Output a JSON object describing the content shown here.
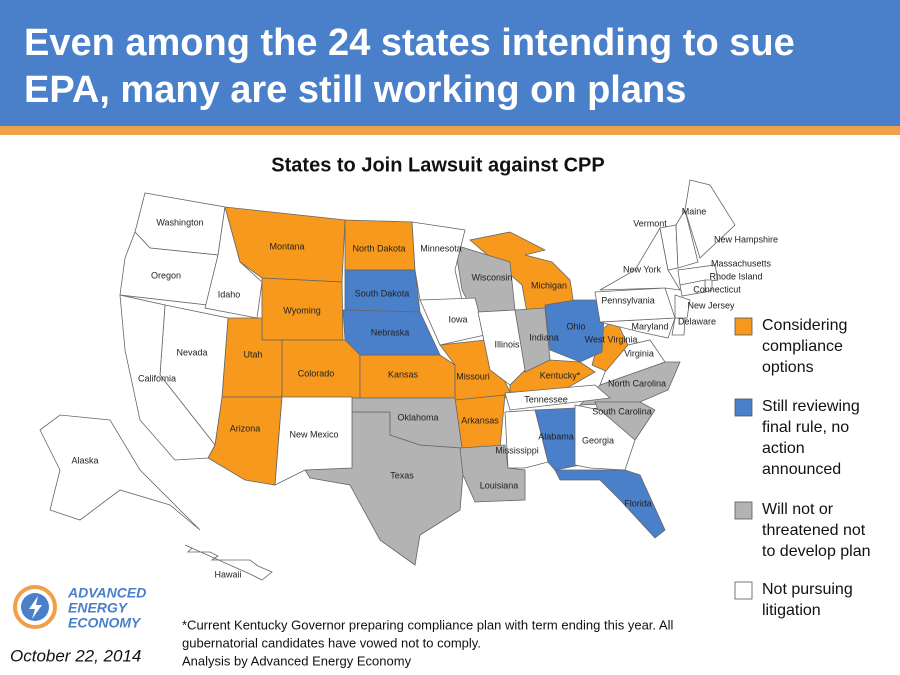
{
  "header": {
    "title_lines": [
      "Even among the 24 states intending to sue",
      "EPA, many are still working on plans"
    ]
  },
  "map": {
    "title": "States to Join Lawsuit against CPP",
    "legend": [
      {
        "label_lines": [
          "Considering",
          "compliance",
          "options"
        ],
        "color": "#f7991c",
        "states": [
          "Montana",
          "North Dakota",
          "Wyoming",
          "Utah",
          "Colorado",
          "Kansas",
          "Missouri",
          "Arizona",
          "Arkansas",
          "Michigan",
          "West Virginia",
          "Kentucky*"
        ]
      },
      {
        "label_lines": [
          "Still reviewing",
          "final rule, no",
          "action",
          "announced"
        ],
        "color": "#4a7fc9",
        "states": [
          "South Dakota",
          "Nebraska",
          "Ohio",
          "Alabama",
          "Florida"
        ]
      },
      {
        "label_lines": [
          "Will not or",
          "threatened not",
          "to develop plan"
        ],
        "color": "#b3b3b3",
        "states": [
          "Wisconsin",
          "Indiana",
          "Texas",
          "Oklahoma",
          "Louisiana",
          "North Carolina",
          "South Carolina"
        ]
      },
      {
        "label_lines": [
          "Not pursuing",
          "litigation"
        ],
        "color": "#ffffff",
        "states": [
          "Washington",
          "Oregon",
          "Idaho",
          "Nevada",
          "California",
          "New Mexico",
          "Minnesota",
          "Iowa",
          "Illinois",
          "Tennessee",
          "Mississippi",
          "Georgia",
          "Virginia",
          "Maryland",
          "Delaware",
          "New Jersey",
          "Pennsylvania",
          "New York",
          "Vermont",
          "New Hampshire",
          "Maine",
          "Massachusetts",
          "Rhode Island",
          "Connecticut",
          "Alaska",
          "Hawaii"
        ]
      }
    ]
  },
  "footnote": [
    "*Current Kentucky Governor preparing compliance plan with term ending this year. All",
    "gubernatorial candidates have vowed not to comply.",
    "Analysis by Advanced Energy Economy"
  ],
  "logo": [
    "ADVANCED",
    "ENERGY",
    "ECONOMY"
  ],
  "date": "October 22, 2014"
}
